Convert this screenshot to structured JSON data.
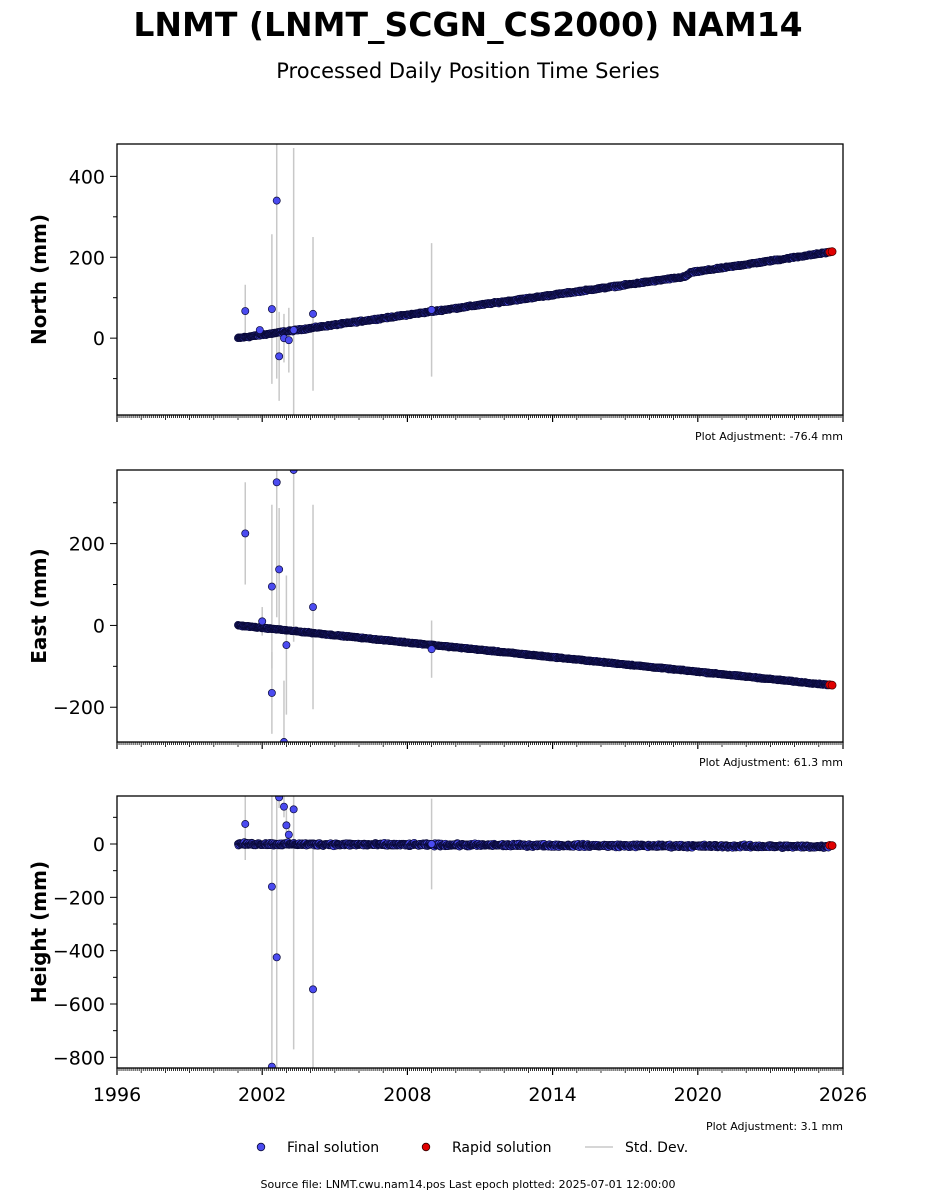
{
  "title": "LNMT (LNMT_SCGN_CS2000) NAM14",
  "subtitle": "Processed Daily Position Time Series",
  "source_note": "Source file: LNMT.cwu.nam14.pos  Last epoch plotted: 2025-07-01 12:00:00",
  "legend": {
    "final": "Final solution",
    "rapid": "Rapid solution",
    "stddev": "Std. Dev."
  },
  "colors": {
    "final_fill": "#4b4bf0",
    "final_edge": "#0a0a3a",
    "rapid_fill": "#e00000",
    "stddev": "#c8c8c8",
    "axis": "#000000"
  },
  "chart_data": [
    {
      "type": "scatter",
      "ylabel": "North (mm)",
      "adjustment": "Plot Adjustment: -76.4 mm",
      "ylim": [
        -190,
        480
      ],
      "yticks": [
        0,
        200,
        400
      ],
      "xlim": [
        1996,
        2026
      ],
      "xticks": [
        1996,
        2002,
        2008,
        2014,
        2020,
        2026
      ],
      "trend": {
        "x": [
          2001.0,
          2019.5,
          2019.7,
          2025.5
        ],
        "y": [
          0,
          152,
          162,
          213
        ]
      },
      "noise": 3,
      "outliers": [
        {
          "x": 2001.3,
          "y": 67,
          "err": 65
        },
        {
          "x": 2001.9,
          "y": 20,
          "err": 0
        },
        {
          "x": 2002.4,
          "y": 72,
          "err": 185
        },
        {
          "x": 2002.6,
          "y": 340,
          "err": 440
        },
        {
          "x": 2002.7,
          "y": -45,
          "err": 110
        },
        {
          "x": 2002.9,
          "y": 0,
          "err": 60
        },
        {
          "x": 2003.1,
          "y": -5,
          "err": 80
        },
        {
          "x": 2003.3,
          "y": 20,
          "err": 450
        },
        {
          "x": 2004.1,
          "y": 60,
          "err": 190
        },
        {
          "x": 2009.0,
          "y": 70,
          "err": 165
        }
      ],
      "rapid_points": [
        {
          "x": 2025.45,
          "y": 213
        },
        {
          "x": 2025.55,
          "y": 214
        }
      ]
    },
    {
      "type": "scatter",
      "ylabel": "East (mm)",
      "adjustment": "Plot Adjustment: 61.3 mm",
      "ylim": [
        -285,
        380
      ],
      "yticks": [
        -200,
        0,
        200
      ],
      "xlim": [
        1996,
        2026
      ],
      "xticks": [
        1996,
        2002,
        2008,
        2014,
        2020,
        2026
      ],
      "trend": {
        "x": [
          2001.0,
          2025.5
        ],
        "y": [
          0,
          -146
        ]
      },
      "noise": 2,
      "outliers": [
        {
          "x": 2001.3,
          "y": 225,
          "err": 125
        },
        {
          "x": 2002.0,
          "y": 10,
          "err": 35
        },
        {
          "x": 2002.4,
          "y": 95,
          "err": 200
        },
        {
          "x": 2002.4,
          "y": -165,
          "err": 100
        },
        {
          "x": 2002.6,
          "y": 350,
          "err": 330
        },
        {
          "x": 2002.7,
          "y": 137,
          "err": 150
        },
        {
          "x": 2002.9,
          "y": -285,
          "err": 150
        },
        {
          "x": 2003.0,
          "y": -48,
          "err": 170
        },
        {
          "x": 2003.3,
          "y": 380,
          "err": 420
        },
        {
          "x": 2004.1,
          "y": 45,
          "err": 250
        },
        {
          "x": 2009.0,
          "y": -58,
          "err": 70
        }
      ],
      "rapid_points": [
        {
          "x": 2025.45,
          "y": -145
        },
        {
          "x": 2025.55,
          "y": -146
        }
      ]
    },
    {
      "type": "scatter",
      "ylabel": "Height (mm)",
      "adjustment": "Plot Adjustment: 3.1 mm",
      "ylim": [
        -840,
        180
      ],
      "yticks": [
        -800,
        -600,
        -400,
        -200,
        0
      ],
      "xlim": [
        1996,
        2026
      ],
      "xticks": [
        1996,
        2002,
        2008,
        2014,
        2020,
        2026
      ],
      "trend": {
        "x": [
          2001.0,
          2025.5
        ],
        "y": [
          0,
          -10
        ]
      },
      "noise": 8,
      "outliers": [
        {
          "x": 2001.3,
          "y": 75,
          "err": 135
        },
        {
          "x": 2002.4,
          "y": -160,
          "err": 680
        },
        {
          "x": 2002.4,
          "y": -835,
          "err": 20
        },
        {
          "x": 2002.6,
          "y": -425,
          "err": 760
        },
        {
          "x": 2002.7,
          "y": 175,
          "err": 40
        },
        {
          "x": 2002.9,
          "y": 140,
          "err": 40
        },
        {
          "x": 2003.0,
          "y": 70,
          "err": 60
        },
        {
          "x": 2003.1,
          "y": 35,
          "err": 30
        },
        {
          "x": 2003.3,
          "y": 130,
          "err": 900
        },
        {
          "x": 2004.1,
          "y": -545,
          "err": 540
        },
        {
          "x": 2009.0,
          "y": 0,
          "err": 170
        }
      ],
      "rapid_points": [
        {
          "x": 2025.45,
          "y": -5
        },
        {
          "x": 2025.55,
          "y": -6
        }
      ]
    }
  ]
}
